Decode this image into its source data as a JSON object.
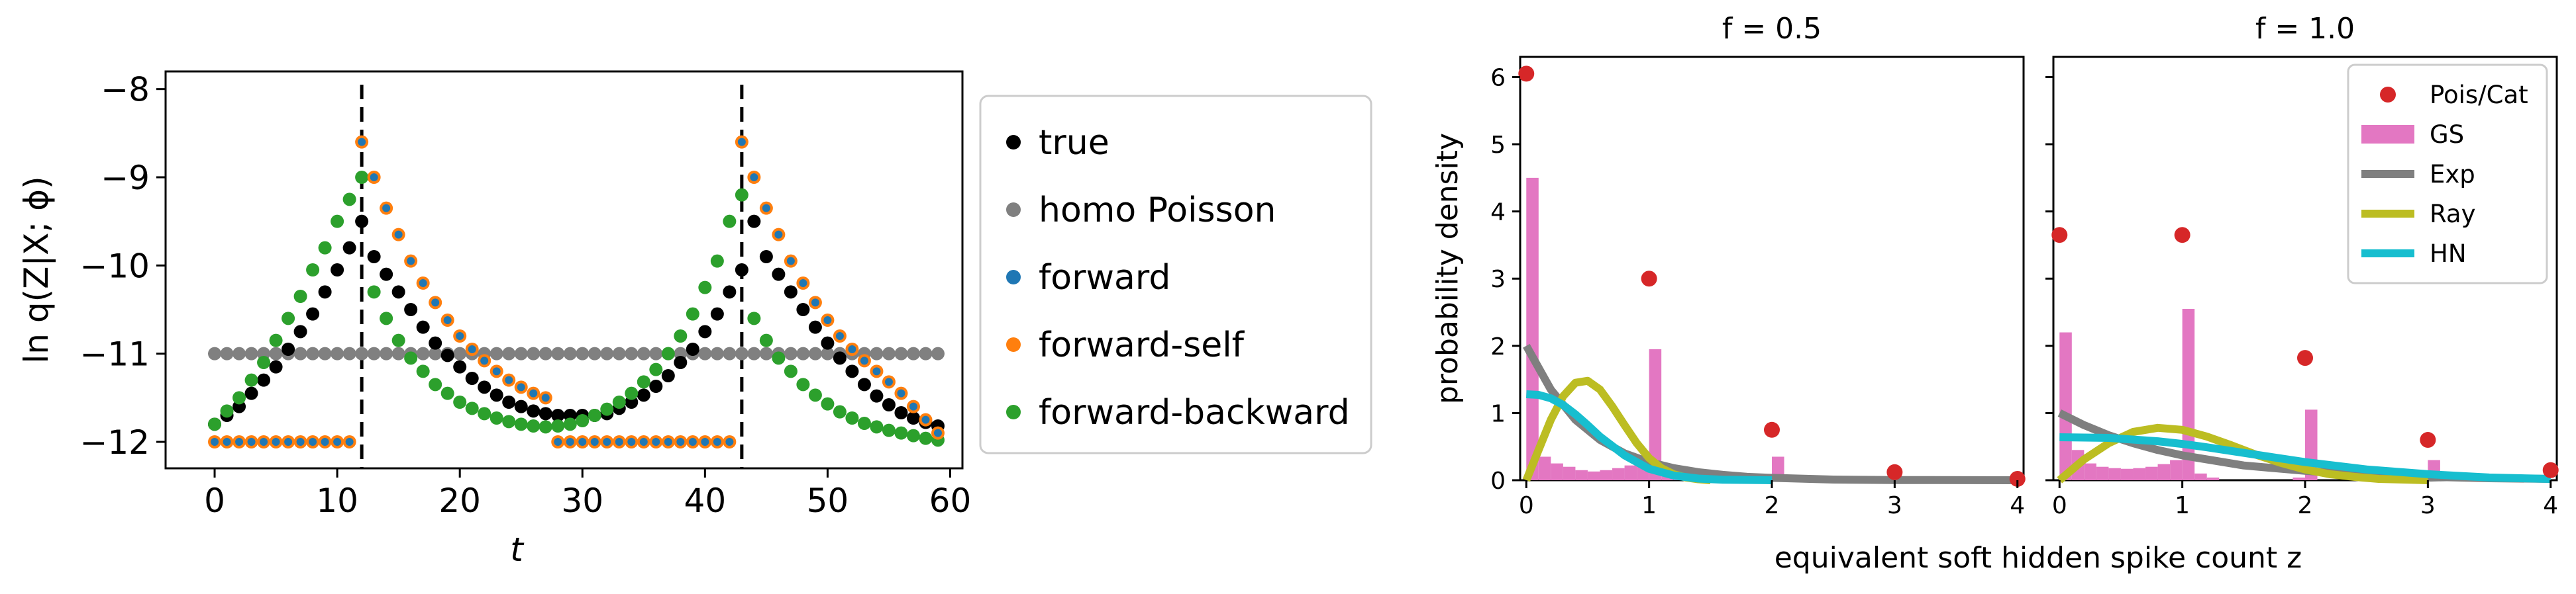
{
  "chart_data": [
    {
      "type": "scatter",
      "xlabel": "t",
      "ylabel": "ln q(Z|X; ϕ)",
      "xlim": [
        -4,
        61
      ],
      "ylim": [
        -12.3,
        -7.8
      ],
      "xticks": [
        0,
        10,
        20,
        30,
        40,
        50,
        60
      ],
      "yticks": [
        -12,
        -11,
        -10,
        -9,
        -8
      ],
      "vlines": [
        12,
        43
      ],
      "legend_position": "outside-right",
      "series": [
        {
          "name": "true",
          "color": "#000000",
          "x": [
            0,
            1,
            2,
            3,
            4,
            5,
            6,
            7,
            8,
            9,
            10,
            11,
            12,
            13,
            14,
            15,
            16,
            17,
            18,
            19,
            20,
            21,
            22,
            23,
            24,
            25,
            26,
            27,
            28,
            29,
            30,
            31,
            32,
            33,
            34,
            35,
            36,
            37,
            38,
            39,
            40,
            41,
            42,
            43,
            44,
            45,
            46,
            47,
            48,
            49,
            50,
            51,
            52,
            53,
            54,
            55,
            56,
            57,
            58,
            59
          ],
          "y": [
            -11.8,
            -11.7,
            -11.6,
            -11.45,
            -11.3,
            -11.15,
            -10.95,
            -10.75,
            -10.55,
            -10.3,
            -10.05,
            -9.8,
            -9.5,
            -9.9,
            -10.1,
            -10.3,
            -10.5,
            -10.7,
            -10.88,
            -11.02,
            -11.15,
            -11.28,
            -11.38,
            -11.47,
            -11.55,
            -11.6,
            -11.65,
            -11.68,
            -11.7,
            -11.7,
            -11.7,
            -11.7,
            -11.68,
            -11.62,
            -11.55,
            -11.47,
            -11.37,
            -11.25,
            -11.1,
            -10.95,
            -10.75,
            -10.55,
            -10.3,
            -10.05,
            -9.5,
            -9.9,
            -10.1,
            -10.3,
            -10.5,
            -10.7,
            -10.88,
            -11.05,
            -11.2,
            -11.35,
            -11.48,
            -11.58,
            -11.67,
            -11.73,
            -11.78,
            -11.82
          ]
        },
        {
          "name": "homo Poisson",
          "color": "#808080",
          "x": [
            0,
            1,
            2,
            3,
            4,
            5,
            6,
            7,
            8,
            9,
            10,
            11,
            12,
            13,
            14,
            15,
            16,
            17,
            18,
            19,
            20,
            21,
            22,
            23,
            24,
            25,
            26,
            27,
            28,
            29,
            30,
            31,
            32,
            33,
            34,
            35,
            36,
            37,
            38,
            39,
            40,
            41,
            42,
            43,
            44,
            45,
            46,
            47,
            48,
            49,
            50,
            51,
            52,
            53,
            54,
            55,
            56,
            57,
            58,
            59
          ],
          "y": [
            -11,
            -11,
            -11,
            -11,
            -11,
            -11,
            -11,
            -11,
            -11,
            -11,
            -11,
            -11,
            -11,
            -11,
            -11,
            -11,
            -11,
            -11,
            -11,
            -11,
            -11,
            -11,
            -11,
            -11,
            -11,
            -11,
            -11,
            -11,
            -11,
            -11,
            -11,
            -11,
            -11,
            -11,
            -11,
            -11,
            -11,
            -11,
            -11,
            -11,
            -11,
            -11,
            -11,
            -11,
            -11,
            -11,
            -11,
            -11,
            -11,
            -11,
            -11,
            -11,
            -11,
            -11,
            -11,
            -11,
            -11,
            -11,
            -11,
            -11
          ]
        },
        {
          "name": "forward",
          "color": "#1f77b4",
          "x": [
            0,
            1,
            2,
            3,
            4,
            5,
            6,
            7,
            8,
            9,
            10,
            11,
            12,
            13,
            14,
            15,
            16,
            17,
            18,
            19,
            20,
            21,
            22,
            23,
            24,
            25,
            26,
            27,
            28,
            29,
            30,
            31,
            32,
            33,
            34,
            35,
            36,
            37,
            38,
            39,
            40,
            41,
            42,
            43,
            44,
            45,
            46,
            47,
            48,
            49,
            50,
            51,
            52,
            53,
            54,
            55,
            56,
            57,
            58,
            59
          ],
          "y": [
            -12,
            -12,
            -12,
            -12,
            -12,
            -12,
            -12,
            -12,
            -12,
            -12,
            -12,
            -12,
            -8.6,
            -9.0,
            -9.35,
            -9.65,
            -9.95,
            -10.2,
            -10.42,
            -10.62,
            -10.8,
            -10.95,
            -11.08,
            -11.2,
            -11.3,
            -11.38,
            -11.45,
            -11.5,
            -12,
            -12,
            -12,
            -12,
            -12,
            -12,
            -12,
            -12,
            -12,
            -12,
            -12,
            -12,
            -12,
            -12,
            -12,
            -8.6,
            -9.0,
            -9.35,
            -9.65,
            -9.95,
            -10.2,
            -10.42,
            -10.62,
            -10.8,
            -10.95,
            -11.08,
            -11.2,
            -11.32,
            -11.45,
            -11.6,
            -11.75,
            -11.9
          ]
        },
        {
          "name": "forward-self",
          "color": "#ff7f0e",
          "x": [
            0,
            1,
            2,
            3,
            4,
            5,
            6,
            7,
            8,
            9,
            10,
            11,
            12,
            13,
            14,
            15,
            16,
            17,
            18,
            19,
            20,
            21,
            22,
            23,
            24,
            25,
            26,
            27,
            28,
            29,
            30,
            31,
            32,
            33,
            34,
            35,
            36,
            37,
            38,
            39,
            40,
            41,
            42,
            43,
            44,
            45,
            46,
            47,
            48,
            49,
            50,
            51,
            52,
            53,
            54,
            55,
            56,
            57,
            58,
            59
          ],
          "y": [
            -12,
            -12,
            -12,
            -12,
            -12,
            -12,
            -12,
            -12,
            -12,
            -12,
            -12,
            -12,
            -8.6,
            -9.0,
            -9.35,
            -9.65,
            -9.95,
            -10.2,
            -10.42,
            -10.62,
            -10.8,
            -10.95,
            -11.08,
            -11.2,
            -11.3,
            -11.38,
            -11.45,
            -11.5,
            -12,
            -12,
            -12,
            -12,
            -12,
            -12,
            -12,
            -12,
            -12,
            -12,
            -12,
            -12,
            -12,
            -12,
            -12,
            -8.6,
            -9.0,
            -9.35,
            -9.65,
            -9.95,
            -10.2,
            -10.42,
            -10.62,
            -10.8,
            -10.95,
            -11.08,
            -11.2,
            -11.32,
            -11.45,
            -11.6,
            -11.75,
            -11.9
          ]
        },
        {
          "name": "forward-backward",
          "color": "#2ca02c",
          "x": [
            0,
            1,
            2,
            3,
            4,
            5,
            6,
            7,
            8,
            9,
            10,
            11,
            12,
            13,
            14,
            15,
            16,
            17,
            18,
            19,
            20,
            21,
            22,
            23,
            24,
            25,
            26,
            27,
            28,
            29,
            30,
            31,
            32,
            33,
            34,
            35,
            36,
            37,
            38,
            39,
            40,
            41,
            42,
            43,
            44,
            45,
            46,
            47,
            48,
            49,
            50,
            51,
            52,
            53,
            54,
            55,
            56,
            57,
            58,
            59
          ],
          "y": [
            -11.8,
            -11.65,
            -11.5,
            -11.3,
            -11.1,
            -10.85,
            -10.6,
            -10.35,
            -10.05,
            -9.8,
            -9.5,
            -9.25,
            -9.0,
            -10.3,
            -10.6,
            -10.85,
            -11.05,
            -11.2,
            -11.35,
            -11.45,
            -11.55,
            -11.62,
            -11.68,
            -11.73,
            -11.77,
            -11.8,
            -11.82,
            -11.83,
            -11.82,
            -11.8,
            -11.76,
            -11.7,
            -11.63,
            -11.55,
            -11.45,
            -11.32,
            -11.18,
            -11.0,
            -10.8,
            -10.55,
            -10.25,
            -9.95,
            -9.5,
            -9.2,
            -10.6,
            -10.85,
            -11.05,
            -11.2,
            -11.35,
            -11.47,
            -11.57,
            -11.66,
            -11.73,
            -11.79,
            -11.83,
            -11.87,
            -11.9,
            -11.93,
            -11.96,
            -11.98
          ]
        }
      ]
    },
    {
      "type": "histogram-with-curves",
      "title": "f = 0.5",
      "ylabel": "probability density",
      "xlim": [
        -0.05,
        4.05
      ],
      "ylim": [
        0,
        6.3
      ],
      "xticks": [
        0,
        1,
        2,
        3,
        4
      ],
      "yticks": [
        0,
        1,
        2,
        3,
        4,
        5,
        6
      ],
      "hist_bin_width": 0.1,
      "hist_bins_start": [
        0.0,
        0.1,
        0.2,
        0.3,
        0.4,
        0.5,
        0.6,
        0.7,
        0.8,
        0.9,
        1.0,
        1.1,
        1.2,
        1.3,
        1.9,
        2.0
      ],
      "hist_heights": [
        4.5,
        0.35,
        0.25,
        0.2,
        0.15,
        0.13,
        0.15,
        0.18,
        0.22,
        0.28,
        1.95,
        0.1,
        0.04,
        0.02,
        0.02,
        0.35
      ],
      "points": {
        "x": [
          0,
          1,
          2,
          3,
          4
        ],
        "y": [
          6.05,
          3.0,
          0.75,
          0.12,
          0.02
        ]
      },
      "curves": {
        "Exp": {
          "x": [
            0,
            0.2,
            0.4,
            0.6,
            0.8,
            1.0,
            1.2,
            1.4,
            1.6,
            1.8,
            2.0,
            2.5,
            3.0,
            4.0
          ],
          "y": [
            2.0,
            1.35,
            0.9,
            0.6,
            0.4,
            0.27,
            0.18,
            0.12,
            0.08,
            0.05,
            0.035,
            0.01,
            0.003,
            0.0
          ]
        },
        "Ray": {
          "x": [
            0,
            0.1,
            0.2,
            0.3,
            0.4,
            0.5,
            0.6,
            0.7,
            0.8,
            0.9,
            1.0,
            1.1,
            1.2,
            1.3,
            1.4,
            1.5
          ],
          "y": [
            0,
            0.45,
            0.9,
            1.25,
            1.45,
            1.48,
            1.35,
            1.1,
            0.82,
            0.55,
            0.33,
            0.18,
            0.09,
            0.04,
            0.015,
            0.0
          ]
        },
        "HN": {
          "x": [
            0,
            0.1,
            0.2,
            0.3,
            0.4,
            0.5,
            0.6,
            0.8,
            1.0,
            1.2,
            1.4,
            1.6,
            2.0
          ],
          "y": [
            1.28,
            1.27,
            1.22,
            1.12,
            0.98,
            0.82,
            0.65,
            0.37,
            0.17,
            0.07,
            0.025,
            0.008,
            0.0
          ]
        }
      }
    },
    {
      "type": "histogram-with-curves",
      "title": "f = 1.0",
      "xlim": [
        -0.05,
        4.05
      ],
      "ylim": [
        0,
        6.3
      ],
      "xticks": [
        0,
        1,
        2,
        3,
        4
      ],
      "hist_bin_width": 0.1,
      "hist_bins_start": [
        0.0,
        0.1,
        0.2,
        0.3,
        0.4,
        0.5,
        0.6,
        0.7,
        0.8,
        0.9,
        1.0,
        1.1,
        1.2,
        1.9,
        2.0,
        3.0
      ],
      "hist_heights": [
        2.2,
        0.45,
        0.25,
        0.2,
        0.18,
        0.17,
        0.18,
        0.2,
        0.24,
        0.3,
        2.55,
        0.1,
        0.04,
        0.04,
        1.05,
        0.3
      ],
      "points": {
        "x": [
          0,
          1,
          2,
          3,
          4
        ],
        "y": [
          3.65,
          3.65,
          1.82,
          0.6,
          0.15
        ]
      },
      "curves": {
        "Exp": {
          "x": [
            0,
            0.2,
            0.4,
            0.6,
            0.8,
            1.0,
            1.5,
            2.0,
            2.5,
            3.0,
            3.5,
            4.0
          ],
          "y": [
            1.0,
            0.82,
            0.67,
            0.55,
            0.45,
            0.37,
            0.22,
            0.14,
            0.08,
            0.05,
            0.03,
            0.02
          ]
        },
        "Ray": {
          "x": [
            0,
            0.2,
            0.4,
            0.6,
            0.8,
            1.0,
            1.2,
            1.4,
            1.6,
            1.8,
            2.0,
            2.2,
            2.4,
            2.6,
            2.8,
            3.0
          ],
          "y": [
            0,
            0.31,
            0.55,
            0.72,
            0.78,
            0.75,
            0.65,
            0.52,
            0.38,
            0.26,
            0.16,
            0.09,
            0.05,
            0.02,
            0.01,
            0.0
          ]
        },
        "HN": {
          "x": [
            0,
            0.4,
            0.8,
            1.0,
            1.2,
            1.6,
            2.0,
            2.5,
            3.0,
            3.5,
            4.0
          ],
          "y": [
            0.64,
            0.63,
            0.58,
            0.54,
            0.49,
            0.38,
            0.27,
            0.16,
            0.09,
            0.04,
            0.02
          ]
        }
      },
      "legend_position": "top-right"
    }
  ],
  "shared_xlabel_right": "equivalent soft hidden spike count z",
  "legend_right": [
    {
      "name": "Pois/Cat",
      "color": "#d62728",
      "kind": "point"
    },
    {
      "name": "GS",
      "color": "#e377c2",
      "kind": "patch"
    },
    {
      "name": "Exp",
      "color": "#7f7f7f",
      "kind": "line"
    },
    {
      "name": "Ray",
      "color": "#bcbd22",
      "kind": "line"
    },
    {
      "name": "HN",
      "color": "#17becf",
      "kind": "line"
    }
  ]
}
